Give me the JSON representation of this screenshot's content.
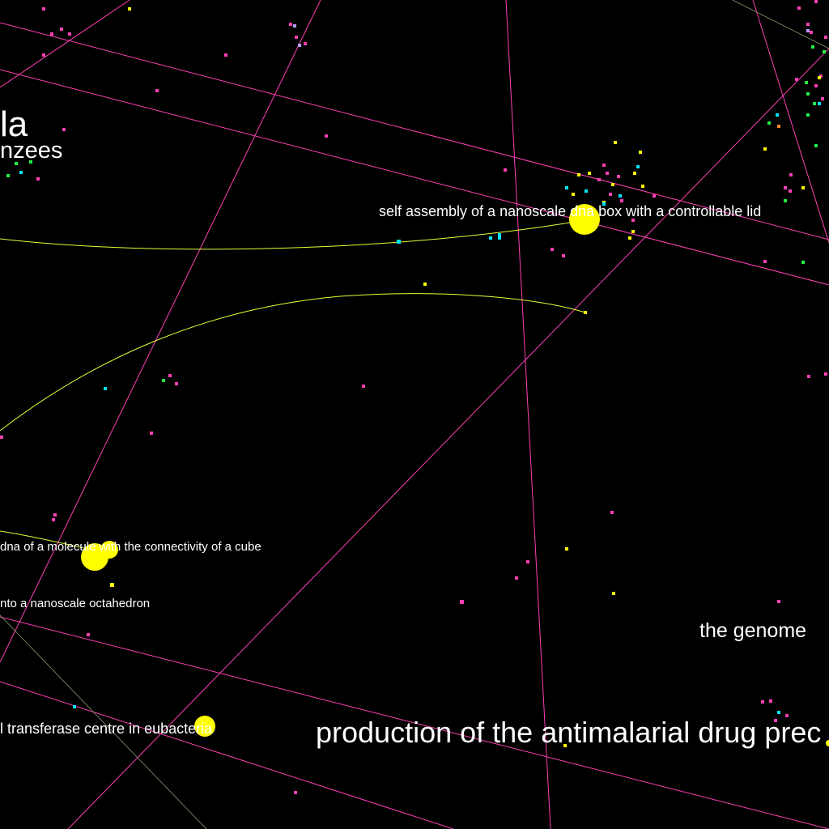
{
  "labels": {
    "la": "la",
    "nzees": "nzees",
    "dna_box": "self assembly of a nanoscale dna box with a controllable lid",
    "cube": "dna of a molecule with the connectivity of a cube",
    "octahedron": "nto a nanoscale octahedron",
    "genome": "the genome",
    "transferase": "l transferase centre in eubacteria",
    "antimalarial": "production of the antimalarial drug prec"
  },
  "colors": {
    "background": "#000000",
    "citation_line": "#ff3fb4",
    "yellow_line": "#e6ff33",
    "node_yellow": "#ffff00",
    "node_pink": "#ff3fb4",
    "node_cyan": "#00e5ff",
    "node_green": "#22ee44",
    "node_violet": "#bb99ff",
    "node_orange": "#ff8833",
    "label_text": "#ffffff"
  }
}
